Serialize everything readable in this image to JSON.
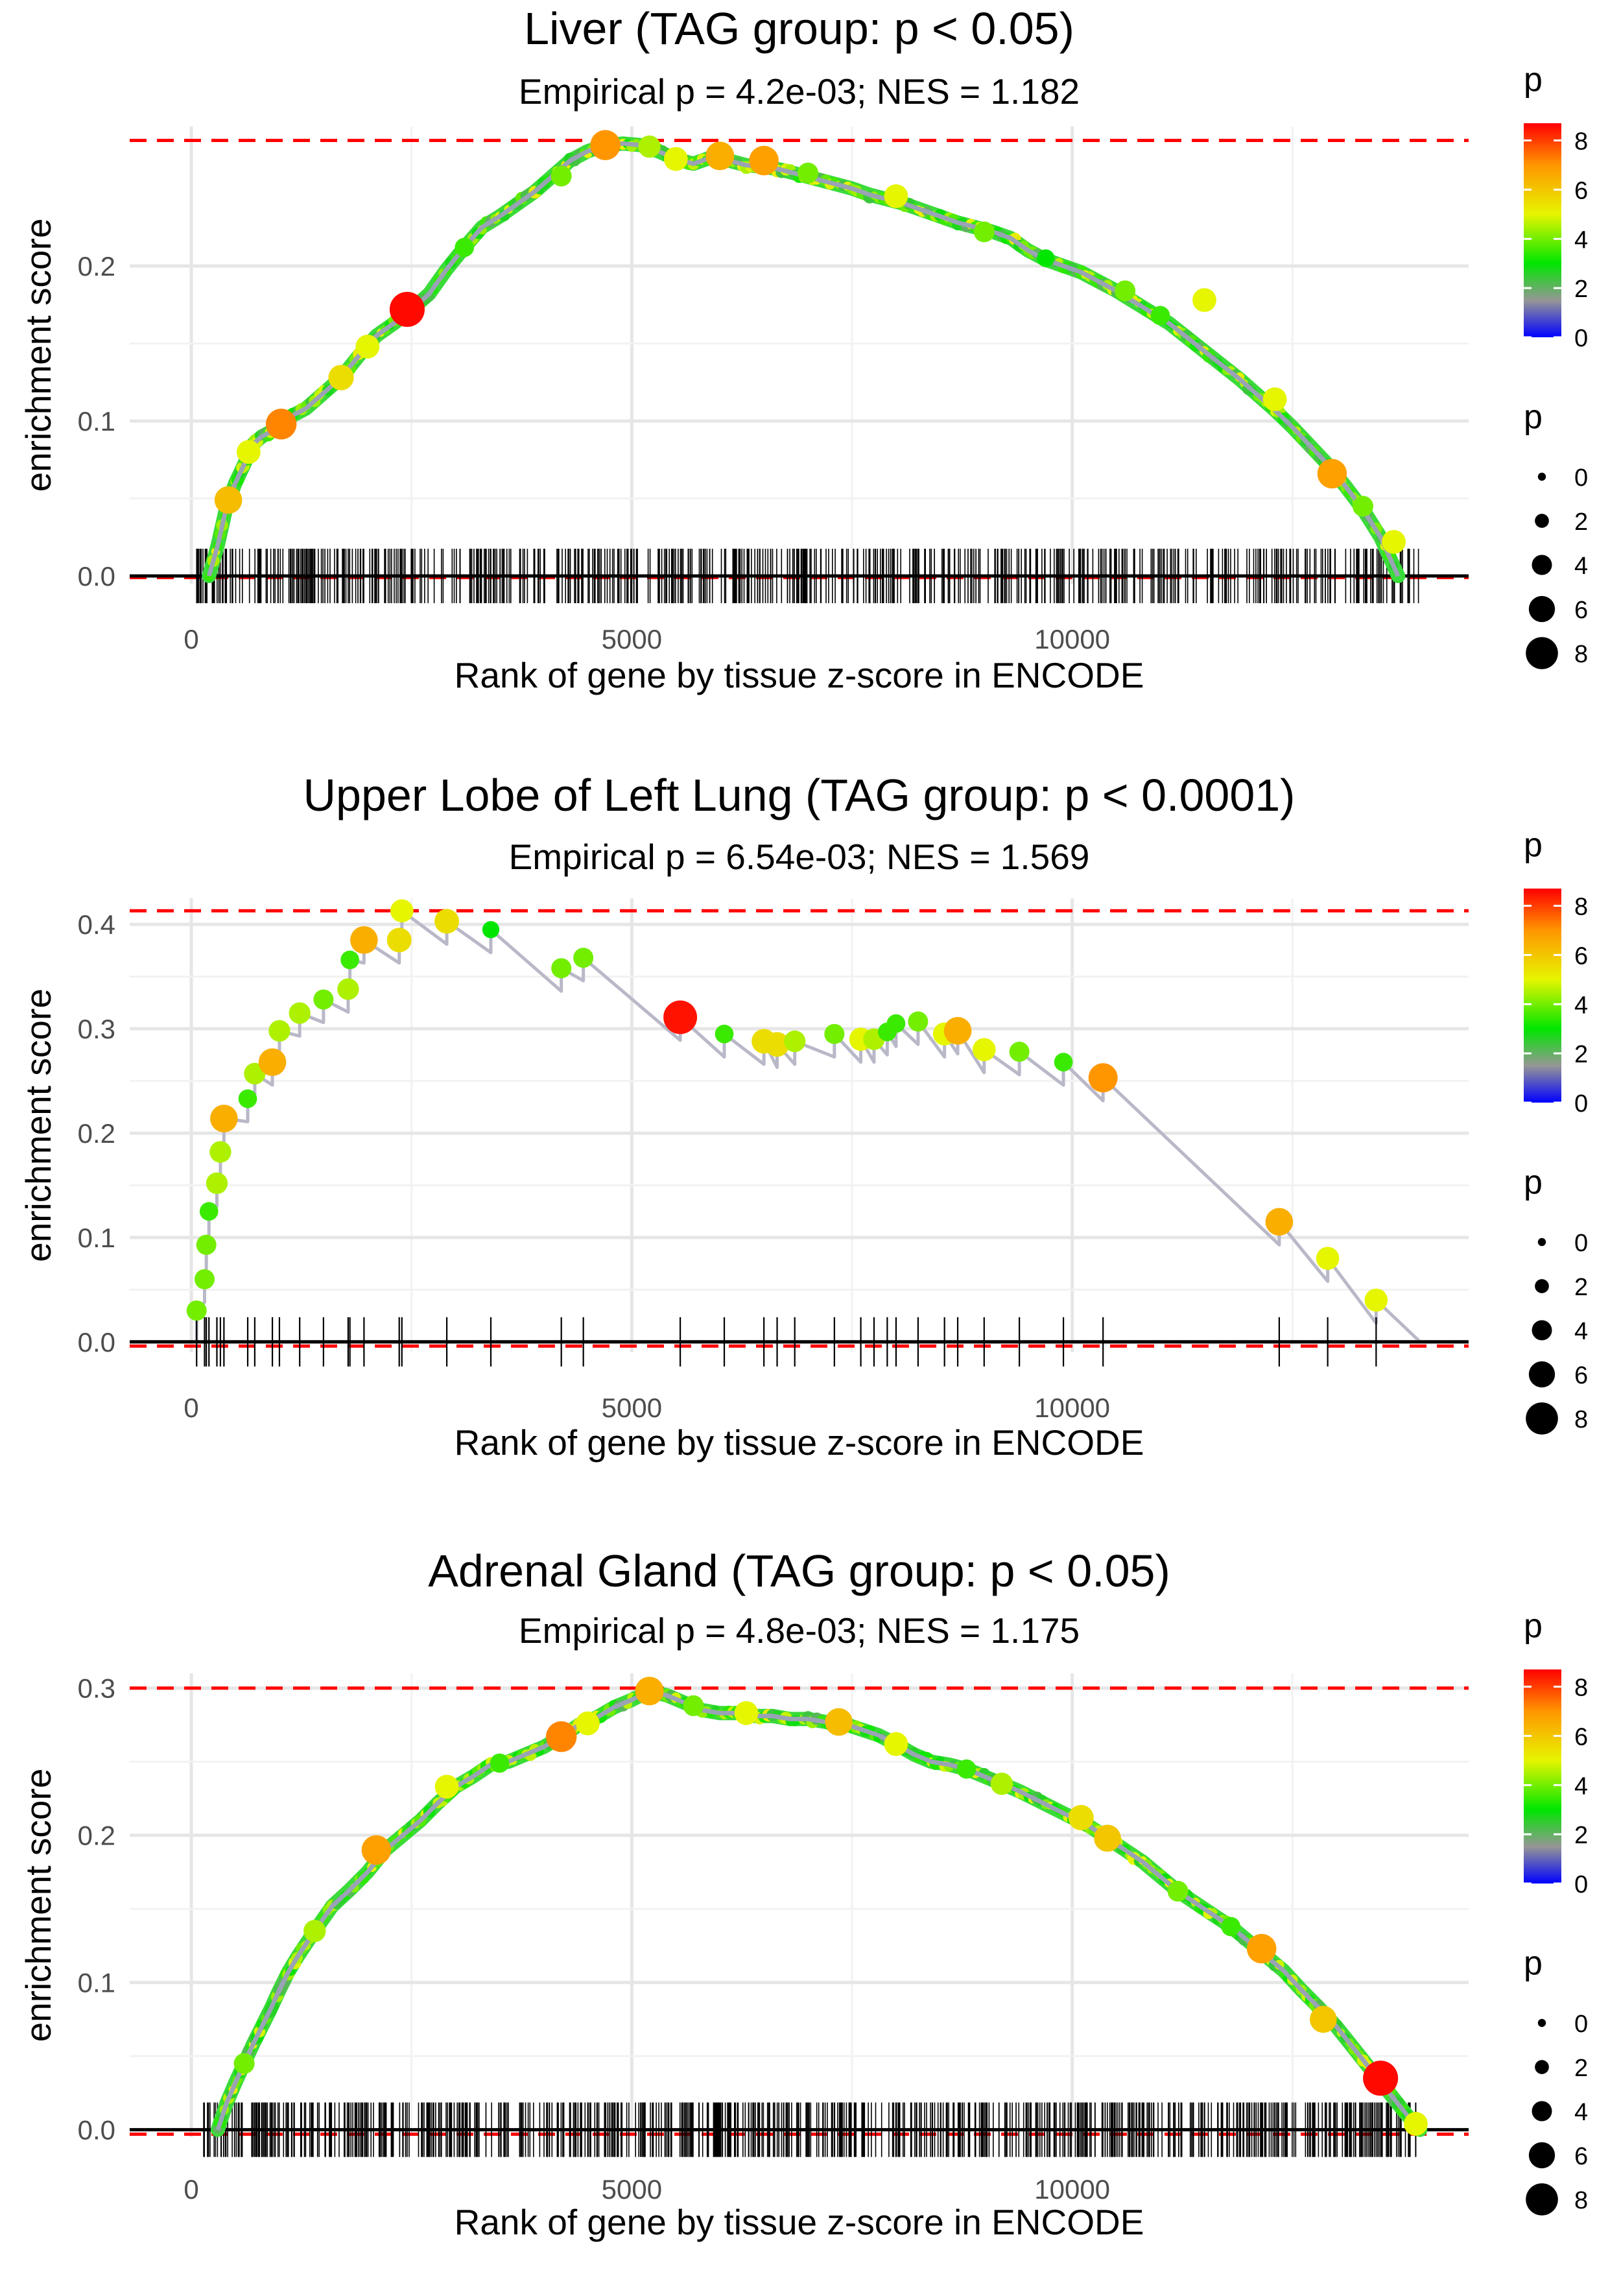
{
  "chart_data": [
    {
      "type": "line",
      "title": "Liver (TAG group: p < 0.05)",
      "subtitle": "Empirical p = 4.2e-03; NES = 1.182",
      "xlabel": "Rank of gene by tissue z-score in ENCODE",
      "ylabel": "enrichment score",
      "xlim": [
        -700,
        14500
      ],
      "ylim": [
        -0.005,
        0.29
      ],
      "xticks": [
        0,
        5000,
        10000
      ],
      "xtick_labels": [
        "0",
        "5000",
        "10000"
      ],
      "yticks": [
        0.0,
        0.1,
        0.2
      ],
      "ytick_labels": [
        "0.0",
        "0.1",
        "0.2"
      ],
      "max_es_line": 0.281,
      "min_es_line": -0.001,
      "series": [
        {
          "name": "running enrichment score",
          "x": [
            200,
            300,
            400,
            500,
            600,
            700,
            800,
            900,
            1000,
            1100,
            1300,
            1500,
            1700,
            1900,
            2100,
            2300,
            2500,
            2700,
            2900,
            3100,
            3300,
            3500,
            3700,
            3900,
            4100,
            4300,
            4500,
            4700,
            4900,
            5100,
            5300,
            5500,
            5700,
            5900,
            6100,
            6300,
            6500,
            6700,
            6900,
            7100,
            7300,
            7500,
            7700,
            7900,
            8100,
            8300,
            8500,
            8700,
            8900,
            9100,
            9300,
            9500,
            9700,
            9900,
            10100,
            10300,
            10500,
            10700,
            10900,
            11100,
            11300,
            11500,
            11700,
            11900,
            12100,
            12300,
            12500,
            12700,
            12900,
            13100,
            13300,
            13500,
            13700
          ],
          "y": [
            0.0,
            0.02,
            0.045,
            0.06,
            0.072,
            0.085,
            0.09,
            0.093,
            0.097,
            0.102,
            0.108,
            0.118,
            0.128,
            0.142,
            0.155,
            0.163,
            0.172,
            0.182,
            0.198,
            0.212,
            0.225,
            0.232,
            0.24,
            0.248,
            0.258,
            0.268,
            0.274,
            0.278,
            0.279,
            0.278,
            0.274,
            0.269,
            0.266,
            0.27,
            0.268,
            0.265,
            0.264,
            0.262,
            0.259,
            0.256,
            0.253,
            0.25,
            0.246,
            0.243,
            0.24,
            0.236,
            0.232,
            0.228,
            0.225,
            0.222,
            0.218,
            0.21,
            0.204,
            0.2,
            0.196,
            0.19,
            0.184,
            0.177,
            0.17,
            0.163,
            0.154,
            0.145,
            0.136,
            0.127,
            0.117,
            0.107,
            0.096,
            0.084,
            0.072,
            0.058,
            0.043,
            0.025,
            0.0
          ]
        }
      ],
      "highlight_points": [
        {
          "x": 2450,
          "y": 0.172,
          "p": 8.6
        },
        {
          "x": 1020,
          "y": 0.098,
          "p": 7.2
        },
        {
          "x": 4700,
          "y": 0.278,
          "p": 7.0
        },
        {
          "x": 6000,
          "y": 0.271,
          "p": 6.5
        },
        {
          "x": 6500,
          "y": 0.268,
          "p": 6.8
        },
        {
          "x": 12950,
          "y": 0.066,
          "p": 6.8
        },
        {
          "x": 420,
          "y": 0.049,
          "p": 6.2
        },
        {
          "x": 1700,
          "y": 0.128,
          "p": 5.5
        },
        {
          "x": 650,
          "y": 0.08,
          "p": 5.0
        },
        {
          "x": 2000,
          "y": 0.148,
          "p": 5.0
        },
        {
          "x": 5500,
          "y": 0.269,
          "p": 5.0
        },
        {
          "x": 8000,
          "y": 0.245,
          "p": 5.0
        },
        {
          "x": 11500,
          "y": 0.178,
          "p": 5.0
        },
        {
          "x": 12300,
          "y": 0.114,
          "p": 5.0
        },
        {
          "x": 13650,
          "y": 0.022,
          "p": 5.0
        },
        {
          "x": 4200,
          "y": 0.258,
          "p": 4.0
        },
        {
          "x": 7000,
          "y": 0.26,
          "p": 4.0
        },
        {
          "x": 9000,
          "y": 0.222,
          "p": 4.0
        },
        {
          "x": 10600,
          "y": 0.184,
          "p": 4.0
        },
        {
          "x": 3100,
          "y": 0.212,
          "p": 3.5
        },
        {
          "x": 5200,
          "y": 0.277,
          "p": 4.5
        },
        {
          "x": 9700,
          "y": 0.205,
          "p": 3.0
        },
        {
          "x": 11000,
          "y": 0.168,
          "p": 3.5
        },
        {
          "x": 13300,
          "y": 0.045,
          "p": 4.0
        }
      ],
      "gene_rug": {
        "n": 600,
        "xmin": 60,
        "xmax": 13950
      },
      "legend": {
        "color_title": "p",
        "color_ticks": [
          "0",
          "2",
          "4",
          "6",
          "8"
        ],
        "size_title": "p",
        "size_ticks": [
          "0",
          "2",
          "4",
          "6",
          "8"
        ],
        "position": "right"
      }
    },
    {
      "type": "line",
      "title": "Upper Lobe of Left Lung (TAG group: p < 0.0001)",
      "subtitle": "Empirical p = 6.54e-03; NES = 1.569",
      "xlabel": "Rank of gene by tissue z-score in ENCODE",
      "ylabel": "enrichment score",
      "xlim": [
        -700,
        14500
      ],
      "ylim": [
        -0.01,
        0.425
      ],
      "xticks": [
        0,
        5000,
        10000
      ],
      "xtick_labels": [
        "0",
        "5000",
        "10000"
      ],
      "yticks": [
        0.0,
        0.1,
        0.2,
        0.3,
        0.4
      ],
      "ytick_labels": [
        "0.0",
        "0.1",
        "0.2",
        "0.3",
        "0.4"
      ],
      "max_es_line": 0.413,
      "min_es_line": -0.004,
      "hits": [
        {
          "x": 60,
          "y": 0.03,
          "p": 4.0
        },
        {
          "x": 150,
          "y": 0.06,
          "p": 4.0
        },
        {
          "x": 170,
          "y": 0.093,
          "p": 4.0
        },
        {
          "x": 200,
          "y": 0.125,
          "p": 3.5
        },
        {
          "x": 290,
          "y": 0.152,
          "p": 4.5
        },
        {
          "x": 330,
          "y": 0.182,
          "p": 4.5
        },
        {
          "x": 370,
          "y": 0.214,
          "p": 6.5
        },
        {
          "x": 640,
          "y": 0.233,
          "p": 3.5
        },
        {
          "x": 720,
          "y": 0.257,
          "p": 4.5
        },
        {
          "x": 920,
          "y": 0.268,
          "p": 6.5
        },
        {
          "x": 1000,
          "y": 0.298,
          "p": 4.5
        },
        {
          "x": 1230,
          "y": 0.315,
          "p": 4.5
        },
        {
          "x": 1500,
          "y": 0.328,
          "p": 4.0
        },
        {
          "x": 1780,
          "y": 0.338,
          "p": 4.5
        },
        {
          "x": 1800,
          "y": 0.366,
          "p": 3.5
        },
        {
          "x": 1960,
          "y": 0.385,
          "p": 6.5
        },
        {
          "x": 2360,
          "y": 0.385,
          "p": 5.5
        },
        {
          "x": 2390,
          "y": 0.413,
          "p": 5.0
        },
        {
          "x": 2900,
          "y": 0.403,
          "p": 5.5
        },
        {
          "x": 3400,
          "y": 0.395,
          "p": 3.0
        },
        {
          "x": 4200,
          "y": 0.358,
          "p": 4.0
        },
        {
          "x": 4450,
          "y": 0.368,
          "p": 4.0
        },
        {
          "x": 5550,
          "y": 0.311,
          "p": 8.5
        },
        {
          "x": 6050,
          "y": 0.295,
          "p": 3.5
        },
        {
          "x": 6500,
          "y": 0.288,
          "p": 5.5
        },
        {
          "x": 6650,
          "y": 0.285,
          "p": 5.5
        },
        {
          "x": 6850,
          "y": 0.288,
          "p": 4.5
        },
        {
          "x": 7300,
          "y": 0.295,
          "p": 4.0
        },
        {
          "x": 7600,
          "y": 0.29,
          "p": 5.0
        },
        {
          "x": 7750,
          "y": 0.29,
          "p": 4.5
        },
        {
          "x": 7900,
          "y": 0.297,
          "p": 3.5
        },
        {
          "x": 8000,
          "y": 0.305,
          "p": 3.5
        },
        {
          "x": 8250,
          "y": 0.307,
          "p": 4.0
        },
        {
          "x": 8550,
          "y": 0.295,
          "p": 5.0
        },
        {
          "x": 8700,
          "y": 0.298,
          "p": 6.5
        },
        {
          "x": 9000,
          "y": 0.28,
          "p": 5.0
        },
        {
          "x": 9400,
          "y": 0.278,
          "p": 4.0
        },
        {
          "x": 9900,
          "y": 0.268,
          "p": 3.5
        },
        {
          "x": 10350,
          "y": 0.253,
          "p": 7.0
        },
        {
          "x": 12350,
          "y": 0.115,
          "p": 6.5
        },
        {
          "x": 12900,
          "y": 0.08,
          "p": 5.0
        },
        {
          "x": 13450,
          "y": 0.04,
          "p": 5.0
        }
      ],
      "end": {
        "x": 13950,
        "y": 0.0
      },
      "legend": {
        "color_title": "p",
        "color_ticks": [
          "0",
          "2",
          "4",
          "6",
          "8"
        ],
        "size_title": "p",
        "size_ticks": [
          "0",
          "2",
          "4",
          "6",
          "8"
        ],
        "position": "right"
      }
    },
    {
      "type": "line",
      "title": "Adrenal Gland (TAG group: p < 0.05)",
      "subtitle": "Empirical p = 4.8e-03; NES = 1.175",
      "xlabel": "Rank of gene by tissue z-score in ENCODE",
      "ylabel": "enrichment score",
      "xlim": [
        -700,
        14500
      ],
      "ylim": [
        -0.005,
        0.31
      ],
      "xticks": [
        0,
        5000,
        10000
      ],
      "xtick_labels": [
        "0",
        "5000",
        "10000"
      ],
      "yticks": [
        0.0,
        0.1,
        0.2,
        0.3
      ],
      "ytick_labels": [
        "0.0",
        "0.1",
        "0.2",
        "0.3"
      ],
      "max_es_line": 0.3,
      "min_es_line": -0.003,
      "series": [
        {
          "name": "running enrichment score",
          "x": [
            300,
            400,
            500,
            600,
            700,
            800,
            900,
            1000,
            1100,
            1200,
            1400,
            1600,
            1800,
            2000,
            2200,
            2400,
            2600,
            2800,
            3000,
            3200,
            3400,
            3600,
            3800,
            4000,
            4200,
            4400,
            4600,
            4800,
            5000,
            5200,
            5400,
            5600,
            5800,
            6000,
            6200,
            6400,
            6600,
            6800,
            7000,
            7200,
            7400,
            7600,
            7800,
            8000,
            8200,
            8400,
            8600,
            8800,
            9000,
            9200,
            9400,
            9600,
            9800,
            10000,
            10200,
            10400,
            10600,
            10800,
            11000,
            11200,
            11400,
            11600,
            11800,
            12000,
            12200,
            12400,
            12600,
            12800,
            13000,
            13200,
            13400,
            13600,
            13800,
            13950
          ],
          "y": [
            0.0,
            0.018,
            0.032,
            0.045,
            0.058,
            0.07,
            0.082,
            0.095,
            0.107,
            0.117,
            0.135,
            0.152,
            0.163,
            0.175,
            0.19,
            0.2,
            0.21,
            0.222,
            0.233,
            0.24,
            0.248,
            0.25,
            0.255,
            0.26,
            0.267,
            0.275,
            0.28,
            0.287,
            0.292,
            0.298,
            0.295,
            0.29,
            0.285,
            0.283,
            0.283,
            0.281,
            0.281,
            0.279,
            0.279,
            0.277,
            0.276,
            0.272,
            0.268,
            0.262,
            0.255,
            0.25,
            0.248,
            0.245,
            0.24,
            0.235,
            0.23,
            0.224,
            0.218,
            0.212,
            0.206,
            0.198,
            0.19,
            0.182,
            0.172,
            0.162,
            0.154,
            0.146,
            0.138,
            0.128,
            0.118,
            0.108,
            0.095,
            0.083,
            0.07,
            0.055,
            0.04,
            0.025,
            0.01,
            0.0
          ]
        }
      ],
      "highlight_points": [
        {
          "x": 13500,
          "y": 0.035,
          "p": 8.6
        },
        {
          "x": 4200,
          "y": 0.267,
          "p": 7.2
        },
        {
          "x": 2100,
          "y": 0.19,
          "p": 6.8
        },
        {
          "x": 12150,
          "y": 0.123,
          "p": 6.8
        },
        {
          "x": 5200,
          "y": 0.298,
          "p": 6.5
        },
        {
          "x": 7350,
          "y": 0.277,
          "p": 6.2
        },
        {
          "x": 10400,
          "y": 0.198,
          "p": 6.0
        },
        {
          "x": 12850,
          "y": 0.075,
          "p": 6.0
        },
        {
          "x": 10100,
          "y": 0.212,
          "p": 5.5
        },
        {
          "x": 2900,
          "y": 0.233,
          "p": 5.0
        },
        {
          "x": 4500,
          "y": 0.276,
          "p": 5.0
        },
        {
          "x": 6300,
          "y": 0.283,
          "p": 5.0
        },
        {
          "x": 8000,
          "y": 0.262,
          "p": 5.0
        },
        {
          "x": 9200,
          "y": 0.235,
          "p": 4.5
        },
        {
          "x": 11200,
          "y": 0.162,
          "p": 4.0
        },
        {
          "x": 1400,
          "y": 0.135,
          "p": 4.5
        },
        {
          "x": 600,
          "y": 0.045,
          "p": 4.0
        },
        {
          "x": 3500,
          "y": 0.249,
          "p": 3.5
        },
        {
          "x": 5700,
          "y": 0.288,
          "p": 4.0
        },
        {
          "x": 8800,
          "y": 0.245,
          "p": 3.5
        },
        {
          "x": 11800,
          "y": 0.138,
          "p": 3.5
        },
        {
          "x": 13900,
          "y": 0.004,
          "p": 5.0
        }
      ],
      "gene_rug": {
        "n": 750,
        "xmin": 80,
        "xmax": 13950
      },
      "legend": {
        "color_title": "p",
        "color_ticks": [
          "0",
          "2",
          "4",
          "6",
          "8"
        ],
        "size_title": "p",
        "size_ticks": [
          "0",
          "2",
          "4",
          "6",
          "8"
        ],
        "position": "right"
      }
    }
  ]
}
